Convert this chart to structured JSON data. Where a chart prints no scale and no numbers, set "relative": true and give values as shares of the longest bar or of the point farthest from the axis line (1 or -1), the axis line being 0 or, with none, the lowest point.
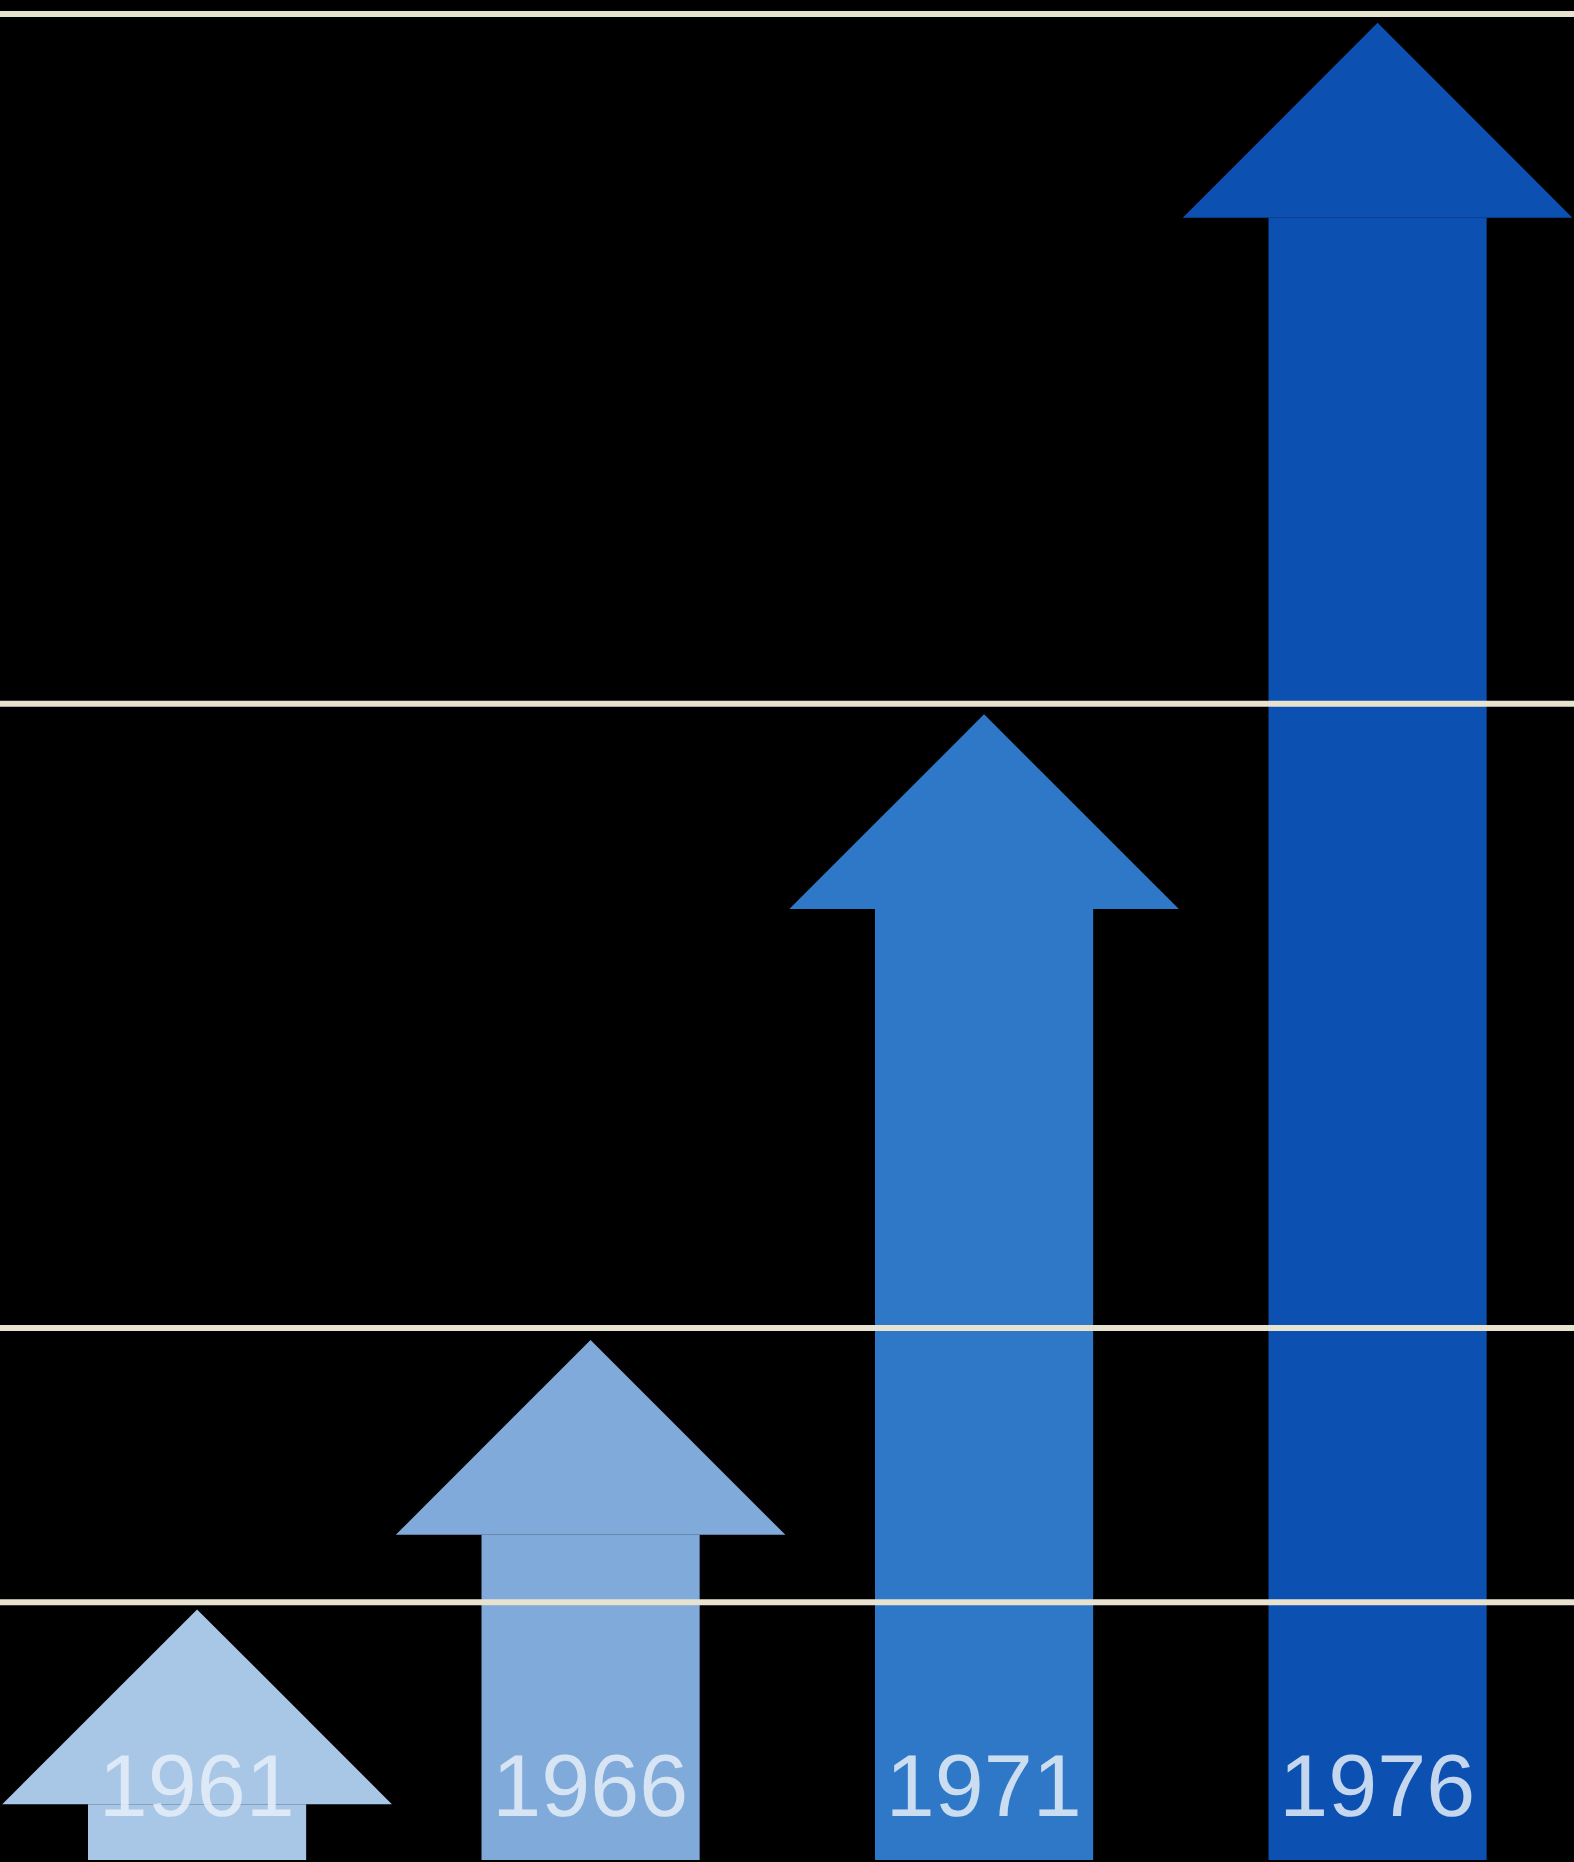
{
  "chart_data": {
    "type": "bar",
    "relative": true,
    "categories": [
      "1961",
      "1966",
      "1971",
      "1976"
    ],
    "values": [
      0.034,
      0.198,
      0.579,
      1
    ],
    "colors": [
      "#a8c6e6",
      "#80aad9",
      "#2f78c8",
      "#0c50b2"
    ],
    "ref_lines": [
      {
        "axis": "y",
        "value": 0.157,
        "color": "#e8e2d0"
      },
      {
        "axis": "y",
        "value": 0.324,
        "color": "#e8e2d0"
      },
      {
        "axis": "y",
        "value": 0.704,
        "color": "#e8e2d0"
      },
      {
        "axis": "y",
        "value": 1.124,
        "color": "#e8e2d0"
      }
    ]
  }
}
